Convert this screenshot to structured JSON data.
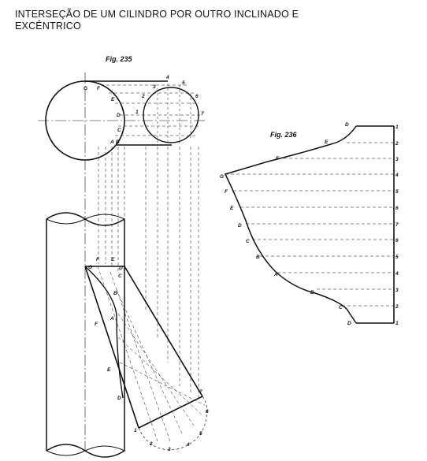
{
  "title": {
    "line1": "INTERSEÇÃO DE UM CILINDRO POR OUTRO INCLINADO E",
    "line2": "EXCÊNTRICO"
  },
  "figures": {
    "fig235": {
      "label": "Fig. 235",
      "top_view_labels": [
        "G",
        "F",
        "E",
        "D",
        "C",
        "A",
        "B",
        "1",
        "2",
        "3",
        "4",
        "5",
        "6",
        "7"
      ],
      "front_view_labels": [
        "G",
        "F",
        "E",
        "D",
        "C",
        "B",
        "A",
        "1",
        "2",
        "3",
        "4",
        "5",
        "6",
        "7"
      ]
    },
    "fig236": {
      "label": "Fig. 236",
      "curve_labels": [
        "D",
        "E",
        "F",
        "G",
        "F",
        "E",
        "D",
        "C",
        "B",
        "A",
        "B",
        "C",
        "D"
      ],
      "edge_labels": [
        "1",
        "2",
        "3",
        "4",
        "5",
        "6",
        "7",
        "6",
        "5",
        "4",
        "3",
        "2",
        "1"
      ]
    }
  }
}
